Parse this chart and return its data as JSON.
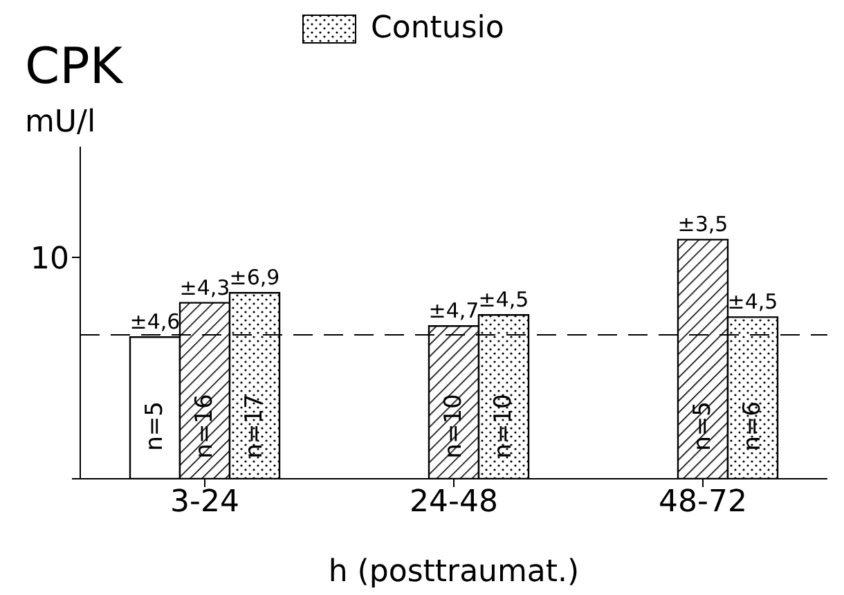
{
  "chart_data": {
    "type": "bar",
    "title": "CPK",
    "ylabel": "mU/l",
    "xlabel": "h (posttraumat.)",
    "categories": [
      "3-24",
      "24-48",
      "48-72"
    ],
    "series": [
      {
        "color": "#ffffff",
        "values": [
          6.4,
          null,
          null
        ]
      },
      {
        "color": "#000000",
        "values": [
          7.95,
          6.9,
          10.8
        ]
      },
      {
        "name": "Contusio",
        "color": "#000000",
        "values": [
          8.4,
          7.4,
          7.3
        ]
      }
    ],
    "ylim": [
      0,
      15
    ],
    "yticks": [
      {
        "value": 0,
        "label": null
      },
      10
    ],
    "ref_lines": [
      {
        "axis": "y",
        "value": 6.5,
        "line_style": "dashed"
      }
    ],
    "legend": "top",
    "annotations": [
      "±4,6",
      "±4,3",
      "±6,9",
      "±4,7",
      "±4,5",
      "±3,5",
      "±4,5",
      "n=5",
      "n=16",
      "n=17",
      "n=10",
      "n=10",
      "n=5",
      "n=6"
    ]
  }
}
